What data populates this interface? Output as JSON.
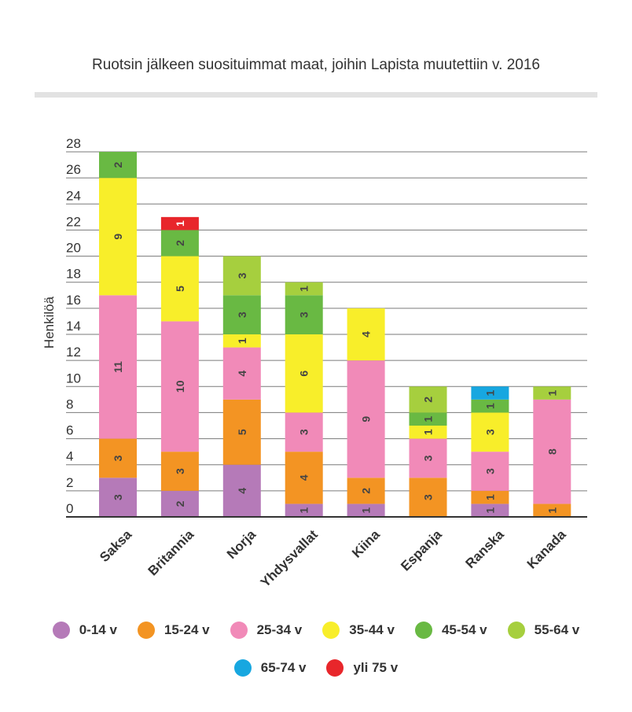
{
  "chart_data": {
    "type": "bar",
    "stacked": true,
    "title": "Ruotsin jälkeen suosituimmat maat, joihin Lapista muutettiin v. 2016",
    "ylabel": "Henkilöä",
    "xlabel": "",
    "ylim": [
      0,
      28
    ],
    "yticks": [
      0,
      2,
      4,
      6,
      8,
      10,
      12,
      14,
      16,
      18,
      20,
      22,
      24,
      26,
      28
    ],
    "grid": true,
    "legend_position": "bottom",
    "categories": [
      "Saksa",
      "Britannia",
      "Norja",
      "Yhdysvallat",
      "Kiina",
      "Espanja",
      "Ranska",
      "Kanada"
    ],
    "series": [
      {
        "name": "0-14 v",
        "color": "#b57ab8",
        "values": [
          3,
          2,
          4,
          1,
          1,
          0,
          1,
          0
        ]
      },
      {
        "name": "15-24 v",
        "color": "#f39423",
        "values": [
          3,
          3,
          5,
          4,
          2,
          3,
          1,
          1
        ]
      },
      {
        "name": "25-34 v",
        "color": "#f18ab8",
        "values": [
          11,
          10,
          4,
          3,
          9,
          3,
          3,
          8
        ]
      },
      {
        "name": "35-44 v",
        "color": "#f8ee2a",
        "values": [
          9,
          5,
          1,
          6,
          4,
          1,
          3,
          0
        ]
      },
      {
        "name": "45-54 v",
        "color": "#69b943",
        "values": [
          2,
          2,
          3,
          3,
          0,
          1,
          1,
          0
        ]
      },
      {
        "name": "55-64 v",
        "color": "#a6cf3e",
        "values": [
          0,
          0,
          3,
          1,
          0,
          2,
          0,
          1
        ]
      },
      {
        "name": "65-74 v",
        "color": "#17a7e0",
        "values": [
          0,
          0,
          0,
          0,
          0,
          0,
          1,
          0
        ]
      },
      {
        "name": "yli 75 v",
        "color": "#e8262b",
        "values": [
          0,
          1,
          0,
          0,
          0,
          0,
          0,
          0
        ]
      }
    ]
  }
}
